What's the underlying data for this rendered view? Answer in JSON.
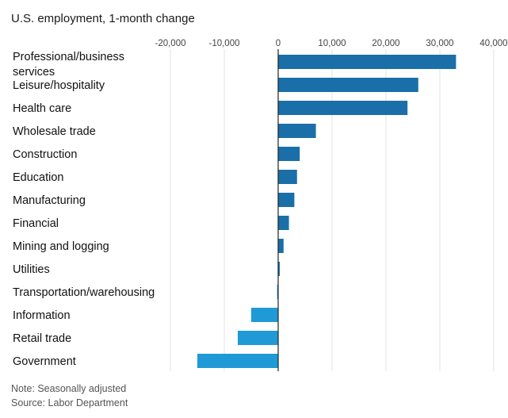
{
  "chart_data": {
    "type": "bar",
    "orientation": "horizontal",
    "title": "U.S. employment, 1-month change",
    "categories": [
      [
        "Professional/business",
        "services"
      ],
      [
        "Leisure/hospitality"
      ],
      [
        "Health care"
      ],
      [
        "Wholesale trade"
      ],
      [
        "Construction"
      ],
      [
        "Education"
      ],
      [
        "Manufacturing"
      ],
      [
        "Financial"
      ],
      [
        "Mining and logging"
      ],
      [
        "Utilities"
      ],
      [
        "Transportation/warehousing"
      ],
      [
        "Information"
      ],
      [
        "Retail trade"
      ],
      [
        "Government"
      ]
    ],
    "values": [
      33000,
      26000,
      24000,
      7000,
      4000,
      3500,
      3000,
      2000,
      1000,
      300,
      -200,
      -5000,
      -7500,
      -15000
    ],
    "xlim": [
      -20000,
      40000
    ],
    "xticks": [
      -20000,
      -10000,
      0,
      10000,
      20000,
      30000,
      40000
    ],
    "xtick_labels": [
      "-20,000",
      "-10,000",
      "0",
      "10,000",
      "20,000",
      "30,000",
      "40,000"
    ],
    "grid": true,
    "colors": {
      "positive": "#1a6fa8",
      "negative": "#1f9ad6",
      "grid": "#e3e3e3",
      "zero_line": "#222222"
    }
  },
  "notes": {
    "note": "Note: Seasonally adjusted",
    "source": "Source: Labor Department"
  }
}
